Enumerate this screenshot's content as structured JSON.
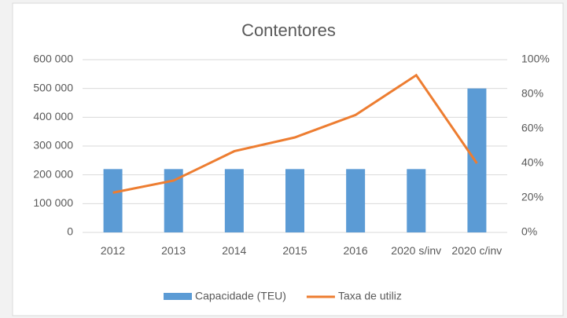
{
  "chart_data": {
    "type": "bar_line",
    "title": "Contentores",
    "categories": [
      "2012",
      "2013",
      "2014",
      "2015",
      "2016",
      "2020 s/inv",
      "2020 c/inv"
    ],
    "series": [
      {
        "name": "Capacidade (TEU)",
        "type": "bar",
        "color": "#5b9bd5",
        "values": [
          220000,
          220000,
          220000,
          220000,
          220000,
          220000,
          500000
        ]
      },
      {
        "name": "Taxa de utiliz",
        "type": "line",
        "axis": "y2",
        "color": "#ed7d31",
        "values": [
          23,
          30,
          47,
          55,
          68,
          91,
          40
        ]
      }
    ],
    "ylim": [
      0,
      600000
    ],
    "yticks": [
      {
        "value": 0,
        "label": "0"
      },
      {
        "value": 100000,
        "label": "100 000"
      },
      {
        "value": 200000,
        "label": "200 000"
      },
      {
        "value": 300000,
        "label": "300 000"
      },
      {
        "value": 400000,
        "label": "400 000"
      },
      {
        "value": 500000,
        "label": "500 000"
      },
      {
        "value": 600000,
        "label": "600 000"
      }
    ],
    "y2lim": [
      0,
      100
    ],
    "y2ticks": [
      {
        "value": 0,
        "label": "0%"
      },
      {
        "value": 20,
        "label": "20%"
      },
      {
        "value": 40,
        "label": "40%"
      },
      {
        "value": 60,
        "label": "60%"
      },
      {
        "value": 80,
        "label": "80%"
      },
      {
        "value": 100,
        "label": "100%"
      }
    ],
    "legend": "bottom"
  }
}
